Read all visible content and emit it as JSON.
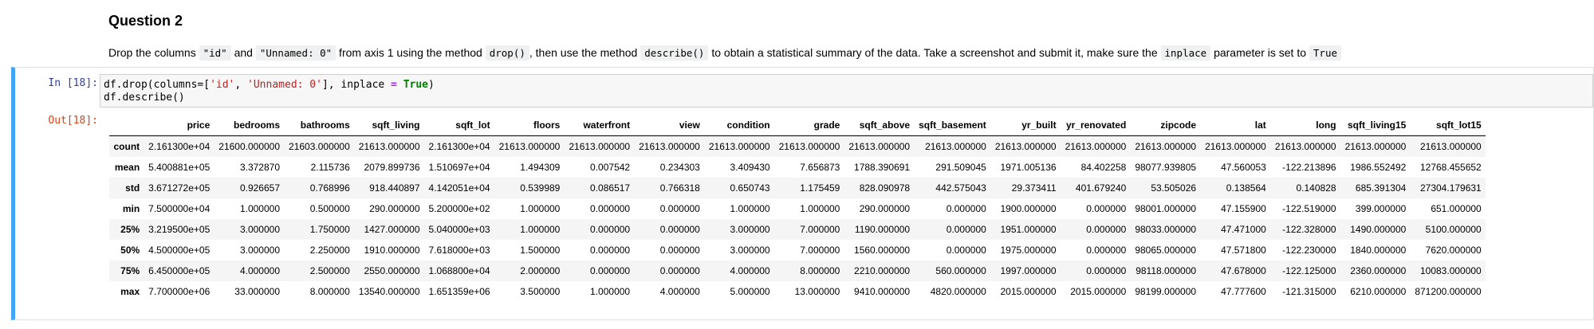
{
  "question": {
    "title": "Question 2",
    "segments": [
      {
        "type": "text",
        "value": "Drop the columns "
      },
      {
        "type": "code",
        "value": "\"id\""
      },
      {
        "type": "text",
        "value": " and "
      },
      {
        "type": "code",
        "value": "\"Unnamed: 0\""
      },
      {
        "type": "text",
        "value": " from axis 1 using the method "
      },
      {
        "type": "code",
        "value": "drop()"
      },
      {
        "type": "text",
        "value": ", then use the method "
      },
      {
        "type": "code",
        "value": "describe()"
      },
      {
        "type": "text",
        "value": " to obtain a statistical summary of the data. Take a screenshot and submit it, make sure the "
      },
      {
        "type": "code",
        "value": "inplace"
      },
      {
        "type": "text",
        "value": " parameter is set to "
      },
      {
        "type": "code",
        "value": "True"
      }
    ]
  },
  "cell": {
    "in_prompt": "In [18]:",
    "out_prompt": "Out[18]:",
    "code": {
      "line1": {
        "a": "df.drop(columns=[",
        "b": "'id'",
        "c": ", ",
        "d": "'Unnamed: 0'",
        "e": "], inplace ",
        "f": "=",
        "g": " ",
        "h": "True",
        "i": ")"
      },
      "line2": "df.describe()"
    }
  },
  "table": {
    "columns": [
      "price",
      "bedrooms",
      "bathrooms",
      "sqft_living",
      "sqft_lot",
      "floors",
      "waterfront",
      "view",
      "condition",
      "grade",
      "sqft_above",
      "sqft_basement",
      "yr_built",
      "yr_renovated",
      "zipcode",
      "lat",
      "long",
      "sqft_living15",
      "sqft_lot15"
    ],
    "rows": [
      {
        "label": "count",
        "values": [
          "2.161300e+04",
          "21600.000000",
          "21603.000000",
          "21613.000000",
          "2.161300e+04",
          "21613.000000",
          "21613.000000",
          "21613.000000",
          "21613.000000",
          "21613.000000",
          "21613.000000",
          "21613.000000",
          "21613.000000",
          "21613.000000",
          "21613.000000",
          "21613.000000",
          "21613.000000",
          "21613.000000",
          "21613.000000"
        ]
      },
      {
        "label": "mean",
        "values": [
          "5.400881e+05",
          "3.372870",
          "2.115736",
          "2079.899736",
          "1.510697e+04",
          "1.494309",
          "0.007542",
          "0.234303",
          "3.409430",
          "7.656873",
          "1788.390691",
          "291.509045",
          "1971.005136",
          "84.402258",
          "98077.939805",
          "47.560053",
          "-122.213896",
          "1986.552492",
          "12768.455652"
        ]
      },
      {
        "label": "std",
        "values": [
          "3.671272e+05",
          "0.926657",
          "0.768996",
          "918.440897",
          "4.142051e+04",
          "0.539989",
          "0.086517",
          "0.766318",
          "0.650743",
          "1.175459",
          "828.090978",
          "442.575043",
          "29.373411",
          "401.679240",
          "53.505026",
          "0.138564",
          "0.140828",
          "685.391304",
          "27304.179631"
        ]
      },
      {
        "label": "min",
        "values": [
          "7.500000e+04",
          "1.000000",
          "0.500000",
          "290.000000",
          "5.200000e+02",
          "1.000000",
          "0.000000",
          "0.000000",
          "1.000000",
          "1.000000",
          "290.000000",
          "0.000000",
          "1900.000000",
          "0.000000",
          "98001.000000",
          "47.155900",
          "-122.519000",
          "399.000000",
          "651.000000"
        ]
      },
      {
        "label": "25%",
        "values": [
          "3.219500e+05",
          "3.000000",
          "1.750000",
          "1427.000000",
          "5.040000e+03",
          "1.000000",
          "0.000000",
          "0.000000",
          "3.000000",
          "7.000000",
          "1190.000000",
          "0.000000",
          "1951.000000",
          "0.000000",
          "98033.000000",
          "47.471000",
          "-122.328000",
          "1490.000000",
          "5100.000000"
        ]
      },
      {
        "label": "50%",
        "values": [
          "4.500000e+05",
          "3.000000",
          "2.250000",
          "1910.000000",
          "7.618000e+03",
          "1.500000",
          "0.000000",
          "0.000000",
          "3.000000",
          "7.000000",
          "1560.000000",
          "0.000000",
          "1975.000000",
          "0.000000",
          "98065.000000",
          "47.571800",
          "-122.230000",
          "1840.000000",
          "7620.000000"
        ]
      },
      {
        "label": "75%",
        "values": [
          "6.450000e+05",
          "4.000000",
          "2.500000",
          "2550.000000",
          "1.068800e+04",
          "2.000000",
          "0.000000",
          "0.000000",
          "4.000000",
          "8.000000",
          "2210.000000",
          "560.000000",
          "1997.000000",
          "0.000000",
          "98118.000000",
          "47.678000",
          "-122.125000",
          "2360.000000",
          "10083.000000"
        ]
      },
      {
        "label": "max",
        "values": [
          "7.700000e+06",
          "33.000000",
          "8.000000",
          "13540.000000",
          "1.651359e+06",
          "3.500000",
          "1.000000",
          "4.000000",
          "5.000000",
          "13.000000",
          "9410.000000",
          "4820.000000",
          "2015.000000",
          "2015.000000",
          "98199.000000",
          "47.777600",
          "-121.315000",
          "6210.000000",
          "871200.000000"
        ]
      }
    ]
  }
}
